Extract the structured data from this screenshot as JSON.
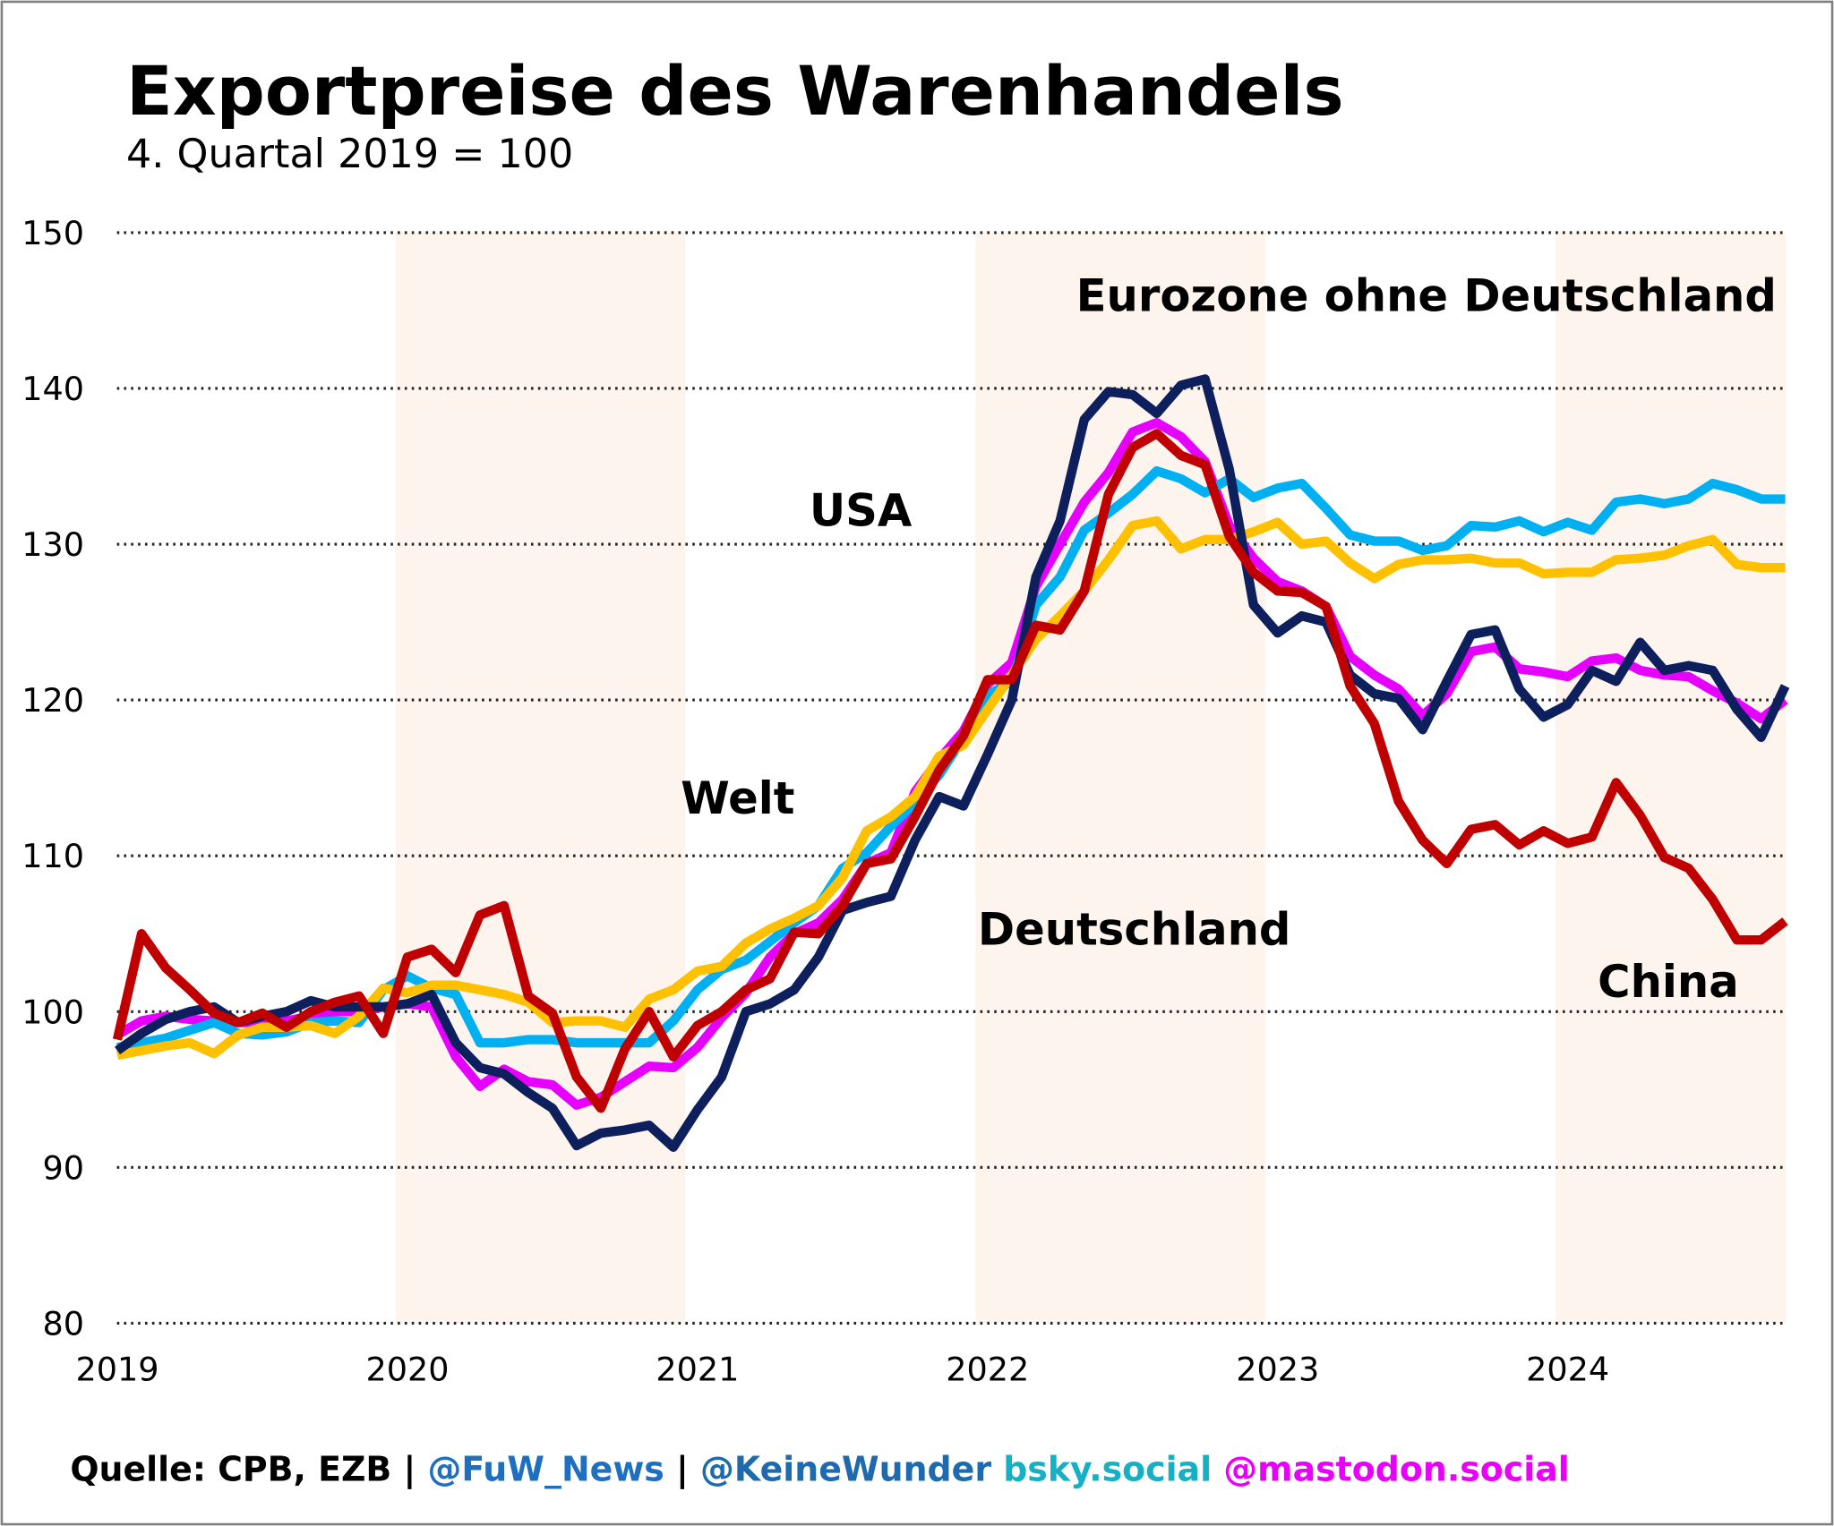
{
  "chart_data": {
    "type": "line",
    "title": "Exportpreise des Warenhandels",
    "subtitle": "4. Quartal 2019 = 100",
    "x_start_year": 2019,
    "x_tick_labels": [
      "2019",
      "2020",
      "2021",
      "2022",
      "2023",
      "2024"
    ],
    "ylim": [
      80,
      150
    ],
    "y_ticks": [
      80,
      90,
      100,
      110,
      120,
      130,
      140,
      150
    ],
    "grid": true,
    "shaded_years": [
      2020,
      2022,
      2024
    ],
    "series": [
      {
        "name": "Welt",
        "color": "#e600ff",
        "values": [
          98.5,
          99.4,
          99.7,
          99.5,
          99.4,
          99.3,
          99.3,
          99.4,
          99.7,
          100.0,
          100.0,
          100.3,
          100.5,
          100.3,
          97.1,
          95.2,
          96.3,
          95.5,
          95.3,
          94.0,
          94.5,
          95.5,
          96.5,
          96.4,
          97.7,
          99.6,
          101.2,
          103.5,
          105.0,
          105.7,
          107.2,
          109.5,
          110.2,
          114.1,
          116.2,
          118.0,
          121.0,
          122.4,
          127.3,
          130.0,
          132.7,
          134.6,
          137.2,
          137.8,
          136.9,
          135.3,
          131.2,
          129.1,
          127.6,
          127.0,
          126.0,
          122.8,
          121.6,
          120.7,
          119.0,
          120.4,
          123.1,
          123.4,
          122.0,
          121.8,
          121.5,
          122.5,
          122.7,
          121.9,
          121.6,
          121.5,
          120.6,
          119.8,
          118.8,
          120.0
        ]
      },
      {
        "name": "Eurozone ohne Deutschland",
        "color": "#00b0f0",
        "values": [
          97.7,
          98.0,
          98.3,
          98.8,
          99.3,
          98.6,
          98.5,
          98.7,
          99.3,
          99.4,
          99.3,
          101.4,
          102.3,
          101.5,
          101.1,
          98.0,
          98.0,
          98.2,
          98.2,
          98.0,
          98.0,
          98.0,
          98.0,
          99.4,
          101.4,
          102.7,
          103.3,
          104.5,
          105.7,
          106.8,
          109.2,
          110.2,
          111.9,
          113.4,
          115.2,
          117.6,
          120.3,
          121.2,
          126.1,
          127.9,
          130.9,
          132.0,
          133.2,
          134.7,
          134.2,
          133.3,
          134.2,
          133.0,
          133.6,
          133.9,
          132.3,
          130.6,
          130.2,
          130.2,
          129.6,
          129.9,
          131.2,
          131.1,
          131.5,
          130.8,
          131.4,
          130.9,
          132.7,
          132.9,
          132.6,
          132.9,
          133.9,
          133.5,
          132.9,
          132.9
        ]
      },
      {
        "name": "Deutschland",
        "color": "#ffc000",
        "values": [
          97.2,
          97.5,
          97.8,
          98.0,
          97.3,
          98.5,
          99.0,
          99.0,
          99.1,
          98.6,
          99.7,
          101.5,
          101.2,
          101.7,
          101.7,
          101.4,
          101.1,
          100.6,
          99.3,
          99.4,
          99.4,
          99.0,
          100.8,
          101.4,
          102.6,
          102.9,
          104.4,
          105.3,
          106.0,
          106.8,
          108.6,
          111.6,
          112.5,
          113.8,
          116.4,
          117.1,
          119.4,
          121.6,
          123.9,
          125.4,
          127.0,
          129.0,
          131.2,
          131.5,
          129.7,
          130.3,
          130.3,
          130.8,
          131.4,
          130.0,
          130.2,
          128.8,
          127.8,
          128.7,
          129.0,
          129.0,
          129.1,
          128.8,
          128.8,
          128.1,
          128.2,
          128.2,
          129.0,
          129.1,
          129.3,
          129.9,
          130.3,
          128.7,
          128.5,
          128.5
        ]
      },
      {
        "name": "USA",
        "color": "#0d1f5c",
        "values": [
          97.5,
          98.6,
          99.5,
          100.0,
          100.3,
          99.3,
          99.7,
          100.0,
          100.7,
          100.3,
          100.3,
          100.3,
          100.5,
          101.1,
          98.0,
          96.4,
          96.0,
          94.8,
          93.8,
          91.4,
          92.2,
          92.4,
          92.7,
          91.3,
          93.7,
          95.8,
          100.0,
          100.5,
          101.4,
          103.5,
          106.5,
          107.0,
          107.4,
          111.0,
          113.8,
          113.2,
          116.5,
          120.0,
          127.9,
          131.5,
          138.0,
          139.8,
          139.6,
          138.4,
          140.2,
          140.6,
          134.8,
          126.1,
          124.3,
          125.4,
          125.0,
          121.6,
          120.4,
          120.1,
          118.1,
          121.2,
          124.2,
          124.5,
          120.7,
          118.9,
          119.7,
          121.9,
          121.2,
          123.7,
          121.9,
          122.2,
          121.9,
          119.4,
          117.6,
          120.9
        ]
      },
      {
        "name": "China",
        "color": "#c00000",
        "values": [
          98.2,
          105.0,
          102.8,
          101.4,
          99.9,
          99.3,
          99.9,
          99.0,
          100.0,
          100.6,
          101.0,
          98.6,
          103.5,
          104.0,
          102.5,
          106.2,
          106.8,
          101.0,
          99.9,
          95.8,
          93.8,
          97.6,
          100.0,
          97.1,
          99.1,
          100.0,
          101.4,
          102.1,
          105.1,
          105.0,
          106.8,
          109.5,
          109.8,
          112.5,
          115.5,
          117.7,
          121.3,
          121.3,
          124.8,
          124.5,
          127.0,
          133.2,
          136.2,
          137.1,
          135.7,
          135.1,
          130.5,
          128.2,
          127.0,
          126.9,
          126.0,
          120.9,
          118.5,
          113.5,
          111.0,
          109.5,
          111.7,
          112.0,
          110.7,
          111.6,
          110.8,
          111.2,
          114.7,
          112.6,
          109.9,
          109.2,
          107.2,
          104.6,
          104.6,
          105.8
        ]
      }
    ]
  },
  "colors": {
    "band": "#fdf4ee",
    "grid": "#222222",
    "frame": "#808080",
    "background": "#ffffff"
  },
  "footer": {
    "segments": [
      {
        "text": "Quelle: CPB, EZB |",
        "color": "#000000"
      },
      {
        "text": "@FuW_News",
        "color": "#1e6fc2"
      },
      {
        "text": "|",
        "color": "#000000"
      },
      {
        "text": "@KeineWunder",
        "color": "#1e6aae"
      },
      {
        "text": "bsky.social",
        "color": "#16b0c4"
      },
      {
        "text": "@mastodon.social",
        "color": "#e800f8"
      }
    ]
  }
}
